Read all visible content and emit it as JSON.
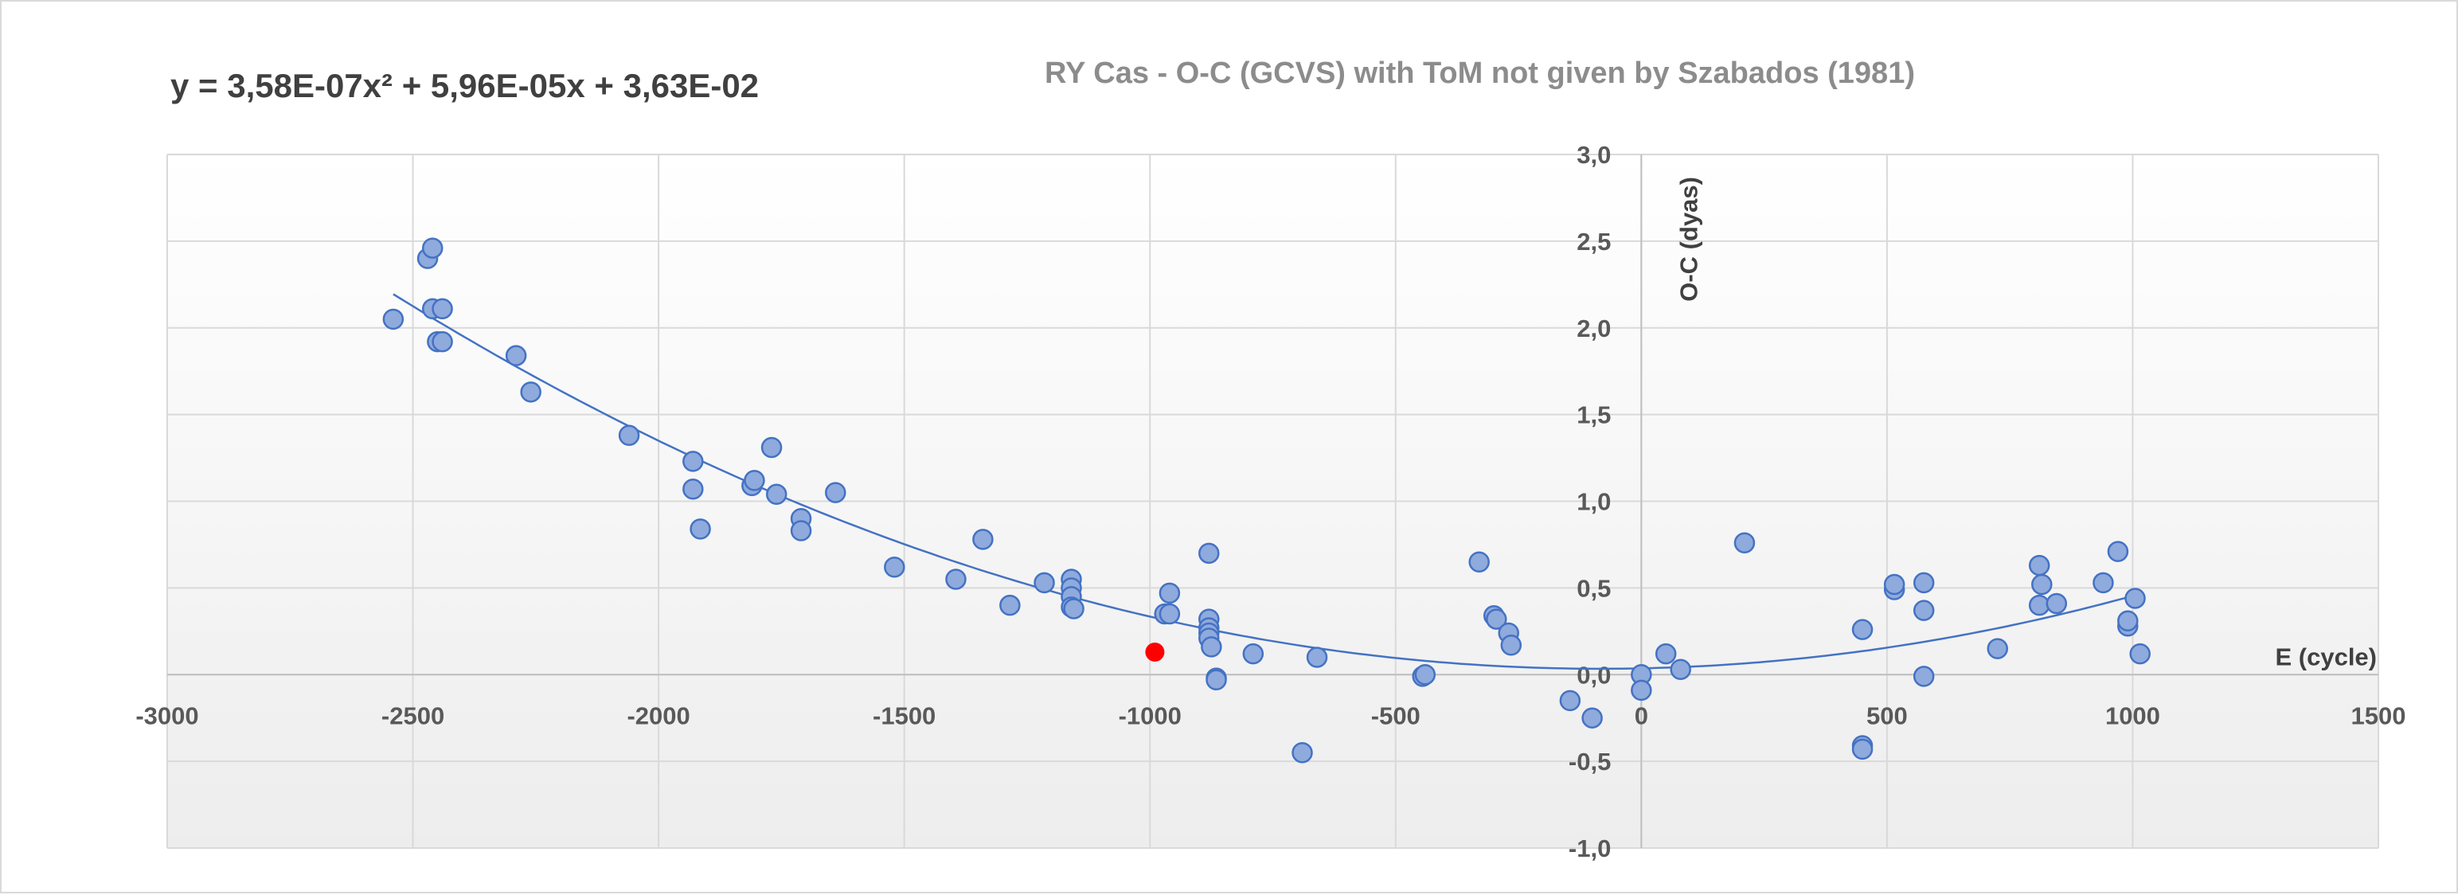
{
  "chart_data": {
    "type": "scatter",
    "title": "RY Cas - O-C (GCVS) with ToM not given by Szabados (1981)",
    "equation": "y = 3,58E-07x² + 5,96E-05x + 3,63E-02",
    "xlabel": "E (cycle)",
    "ylabel": "O-C (dyas)",
    "xlim": [
      -3000,
      1500
    ],
    "ylim": [
      -1.0,
      3.0
    ],
    "x_ticks": [
      "-3000",
      "-2500",
      "-2000",
      "-1500",
      "-1000",
      "-500",
      "0",
      "500",
      "1000",
      "1500"
    ],
    "y_ticks": [
      "-1,0",
      "-0,5",
      "0,0",
      "0,5",
      "1,0",
      "1,5",
      "2,0",
      "2,5",
      "3,0"
    ],
    "grid": true,
    "colors": {
      "marker_fill": "#8faadc",
      "marker_edge": "#4472c4",
      "trendline": "#4472c4",
      "highlight": "#ff0000"
    },
    "trendline": {
      "type": "polynomial",
      "coefficients": [
        3.58e-07,
        5.96e-05,
        0.0363
      ],
      "x_range": [
        -2540,
        1010
      ]
    },
    "series": [
      {
        "points": [
          [
            -2540,
            2.05
          ],
          [
            -2470,
            2.4
          ],
          [
            -2460,
            2.46
          ],
          [
            -2460,
            2.11
          ],
          [
            -2450,
            1.92
          ],
          [
            -2440,
            2.11
          ],
          [
            -2440,
            1.92
          ],
          [
            -2290,
            1.84
          ],
          [
            -2260,
            1.63
          ],
          [
            -2060,
            1.38
          ],
          [
            -1930,
            1.23
          ],
          [
            -1930,
            1.07
          ],
          [
            -1915,
            0.84
          ],
          [
            -1810,
            1.09
          ],
          [
            -1805,
            1.12
          ],
          [
            -1770,
            1.31
          ],
          [
            -1760,
            1.04
          ],
          [
            -1710,
            0.9
          ],
          [
            -1710,
            0.83
          ],
          [
            -1640,
            1.05
          ],
          [
            -1520,
            0.62
          ],
          [
            -1395,
            0.55
          ],
          [
            -1340,
            0.78
          ],
          [
            -1285,
            0.4
          ],
          [
            -1215,
            0.53
          ],
          [
            -1160,
            0.55
          ],
          [
            -1160,
            0.5
          ],
          [
            -1160,
            0.45
          ],
          [
            -1160,
            0.39
          ],
          [
            -1155,
            0.38
          ],
          [
            -970,
            0.35
          ],
          [
            -960,
            0.47
          ],
          [
            -960,
            0.35
          ],
          [
            -880,
            0.7
          ],
          [
            -880,
            0.32
          ],
          [
            -880,
            0.27
          ],
          [
            -880,
            0.24
          ],
          [
            -880,
            0.21
          ],
          [
            -875,
            0.16
          ],
          [
            -865,
            -0.02
          ],
          [
            -865,
            -0.03
          ],
          [
            -790,
            0.12
          ],
          [
            -690,
            -0.45
          ],
          [
            -660,
            0.1
          ],
          [
            -445,
            -0.01
          ],
          [
            -440,
            0.0
          ],
          [
            -330,
            0.65
          ],
          [
            -300,
            0.34
          ],
          [
            -295,
            0.32
          ],
          [
            -270,
            0.24
          ],
          [
            -265,
            0.17
          ],
          [
            -145,
            -0.15
          ],
          [
            -100,
            -0.25
          ],
          [
            0,
            0.0
          ],
          [
            0,
            -0.09
          ],
          [
            50,
            0.12
          ],
          [
            80,
            0.03
          ],
          [
            210,
            0.76
          ],
          [
            450,
            -0.41
          ],
          [
            450,
            -0.43
          ],
          [
            450,
            0.26
          ],
          [
            515,
            0.49
          ],
          [
            515,
            0.52
          ],
          [
            575,
            0.53
          ],
          [
            575,
            0.37
          ],
          [
            575,
            -0.01
          ],
          [
            725,
            0.15
          ],
          [
            810,
            0.63
          ],
          [
            815,
            0.52
          ],
          [
            810,
            0.4
          ],
          [
            845,
            0.41
          ],
          [
            940,
            0.53
          ],
          [
            970,
            0.71
          ],
          [
            990,
            0.28
          ],
          [
            990,
            0.31
          ],
          [
            1005,
            0.44
          ],
          [
            1015,
            0.12
          ]
        ]
      },
      {
        "highlight": true,
        "points": [
          [
            -990,
            0.13
          ]
        ]
      }
    ]
  }
}
